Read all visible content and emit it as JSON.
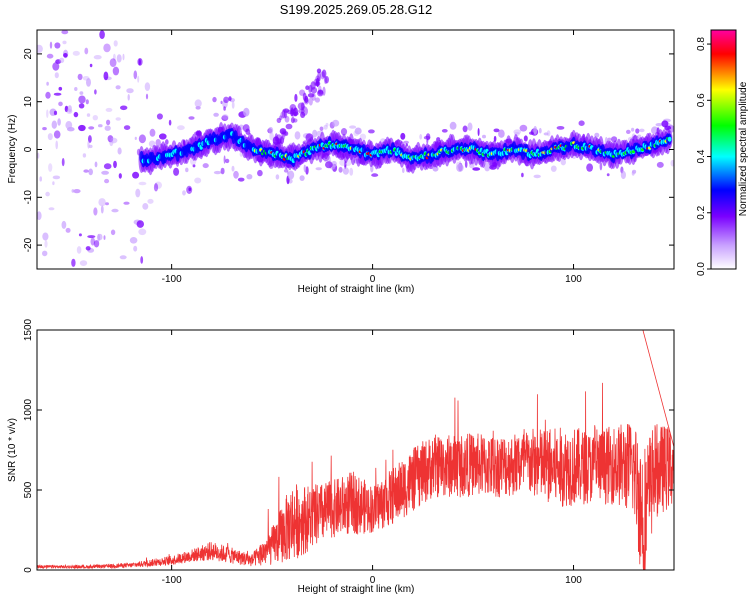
{
  "title": "S199.2025.269.05.28.G12",
  "chart_data": [
    {
      "type": "heatmap",
      "title": "S199.2025.269.05.28.G12",
      "xlabel": "Height of straight line (km)",
      "ylabel": "Frequency (Hz)",
      "xlim": [
        -167,
        150
      ],
      "ylim": [
        -25,
        25
      ],
      "x_ticks": [
        -100,
        0,
        100
      ],
      "x_tick_labels": [
        "-100",
        "0",
        "100"
      ],
      "y_ticks": [
        -20,
        -10,
        0,
        10,
        20
      ],
      "y_tick_labels": [
        "-20",
        "-10",
        "0",
        "10",
        "20"
      ],
      "colorbar": {
        "label": "Normalized spectral amplitude",
        "range": [
          0.0,
          0.85
        ],
        "ticks": [
          0.0,
          0.2,
          0.4,
          0.6,
          0.8
        ],
        "tick_labels": [
          "0.0",
          "0.2",
          "0.4",
          "0.6",
          "0.8"
        ],
        "colors": [
          "#ffffff",
          "#c8a0ff",
          "#7a00ff",
          "#0000ff",
          "#00ffff",
          "#00ff00",
          "#ffff00",
          "#ff0000",
          "#ff00a0"
        ]
      },
      "ridge": {
        "x": [
          -110,
          -100,
          -90,
          -80,
          -70,
          -60,
          -50,
          -40,
          -30,
          -20,
          -10,
          0,
          10,
          20,
          30,
          40,
          50,
          60,
          70,
          80,
          90,
          100,
          110,
          120,
          130,
          140,
          148
        ],
        "freq": [
          -2,
          -1,
          0,
          2,
          3,
          0,
          -1,
          -2,
          0,
          1,
          0,
          -1,
          0,
          -2,
          -1,
          0,
          0,
          -1,
          0,
          -1,
          0,
          1,
          0,
          -1,
          0,
          1,
          2
        ]
      }
    },
    {
      "type": "line",
      "xlabel": "Height of straight line (km)",
      "ylabel": "SNR (10 * v/v)",
      "xlim": [
        -167,
        150
      ],
      "ylim": [
        0,
        1500
      ],
      "x_ticks": [
        -100,
        0,
        100
      ],
      "x_tick_labels": [
        "-100",
        "0",
        "100"
      ],
      "y_ticks": [
        0,
        500,
        1000,
        1500
      ],
      "y_tick_labels": [
        "0",
        "500",
        "1000",
        "1500"
      ],
      "color": "#ee3333",
      "envelope": {
        "x": [
          -167,
          -140,
          -120,
          -100,
          -90,
          -80,
          -70,
          -60,
          -50,
          -40,
          -30,
          -20,
          -10,
          0,
          10,
          20,
          30,
          40,
          50,
          60,
          70,
          80,
          90,
          100,
          110,
          120,
          130,
          135,
          140,
          150
        ],
        "mean": [
          20,
          20,
          30,
          60,
          90,
          120,
          90,
          60,
          150,
          300,
          330,
          380,
          420,
          380,
          460,
          560,
          650,
          650,
          660,
          650,
          660,
          670,
          640,
          650,
          640,
          660,
          640,
          300,
          620,
          650
        ],
        "spread": [
          10,
          10,
          15,
          30,
          40,
          60,
          50,
          40,
          120,
          250,
          200,
          180,
          200,
          150,
          180,
          200,
          200,
          200,
          200,
          200,
          200,
          220,
          250,
          250,
          220,
          250,
          300,
          500,
          300,
          250
        ]
      }
    }
  ]
}
